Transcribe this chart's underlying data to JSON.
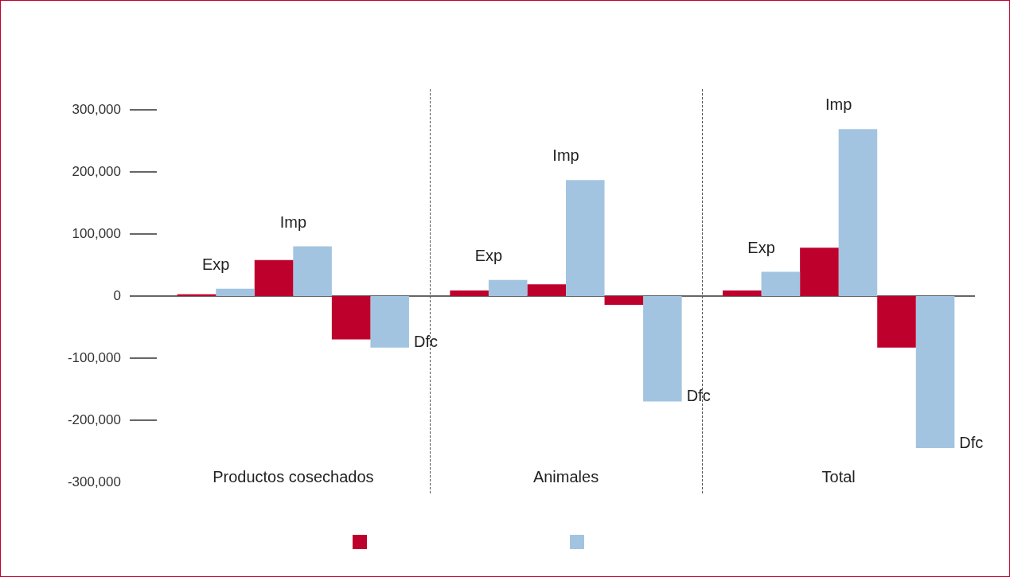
{
  "chart_data": {
    "type": "bar",
    "categories": [
      "Productos cosechados",
      "Animales",
      "Total"
    ],
    "series": [
      {
        "color": "#be002d",
        "values": [
          3000,
          9000,
          9000
        ]
      },
      {
        "color": "#a3c4e1",
        "values": [
          12000,
          26000,
          39000
        ]
      },
      {
        "color": "#be002d",
        "values": [
          58000,
          19000,
          78000
        ]
      },
      {
        "color": "#a3c4e1",
        "values": [
          80000,
          187000,
          269000
        ]
      },
      {
        "color": "#be002d",
        "values": [
          -70000,
          -14000,
          -83000
        ]
      },
      {
        "color": "#a3c4e1",
        "values": [
          -83000,
          -170000,
          -245000
        ]
      }
    ],
    "ylim": [
      -300000,
      300000
    ],
    "yticks": [
      {
        "value": -300000,
        "label": "-300,000"
      },
      {
        "value": -200000,
        "label": "-200,000"
      },
      {
        "value": -100000,
        "label": "-100,000"
      },
      0,
      {
        "value": 100000,
        "label": "100,000"
      },
      {
        "value": 200000,
        "label": "200,000"
      },
      {
        "value": 300000,
        "label": "300,000"
      }
    ],
    "annotations": [
      "Exp",
      "Imp",
      "Dfc",
      "Exp",
      "Imp",
      "Dfc",
      "Exp",
      "Imp",
      "Dfc"
    ]
  }
}
